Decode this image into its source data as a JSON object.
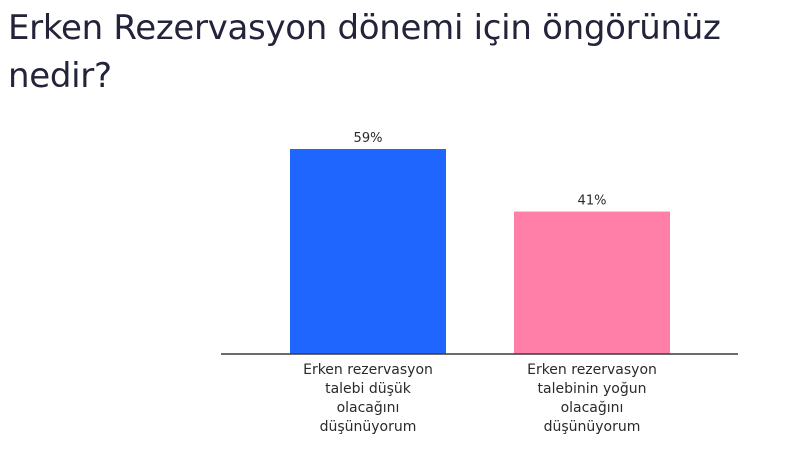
{
  "chart_data": {
    "type": "bar",
    "title": "Erken Rezervasyon dönemi için öngörünüz nedir?",
    "categories": [
      [
        "Erken rezervasyon",
        "talebi düşük",
        "olacağını",
        "düşünüyorum"
      ],
      [
        "Erken rezervasyon",
        "talebinin yoğun",
        "olacağını",
        "düşünüyorum"
      ]
    ],
    "values": [
      59,
      41
    ],
    "value_labels": [
      "59%",
      "41%"
    ],
    "colors": [
      "#1f66ff",
      "#ff7fa8"
    ],
    "ylim": [
      0,
      59
    ],
    "grid": false,
    "legend": "none"
  }
}
